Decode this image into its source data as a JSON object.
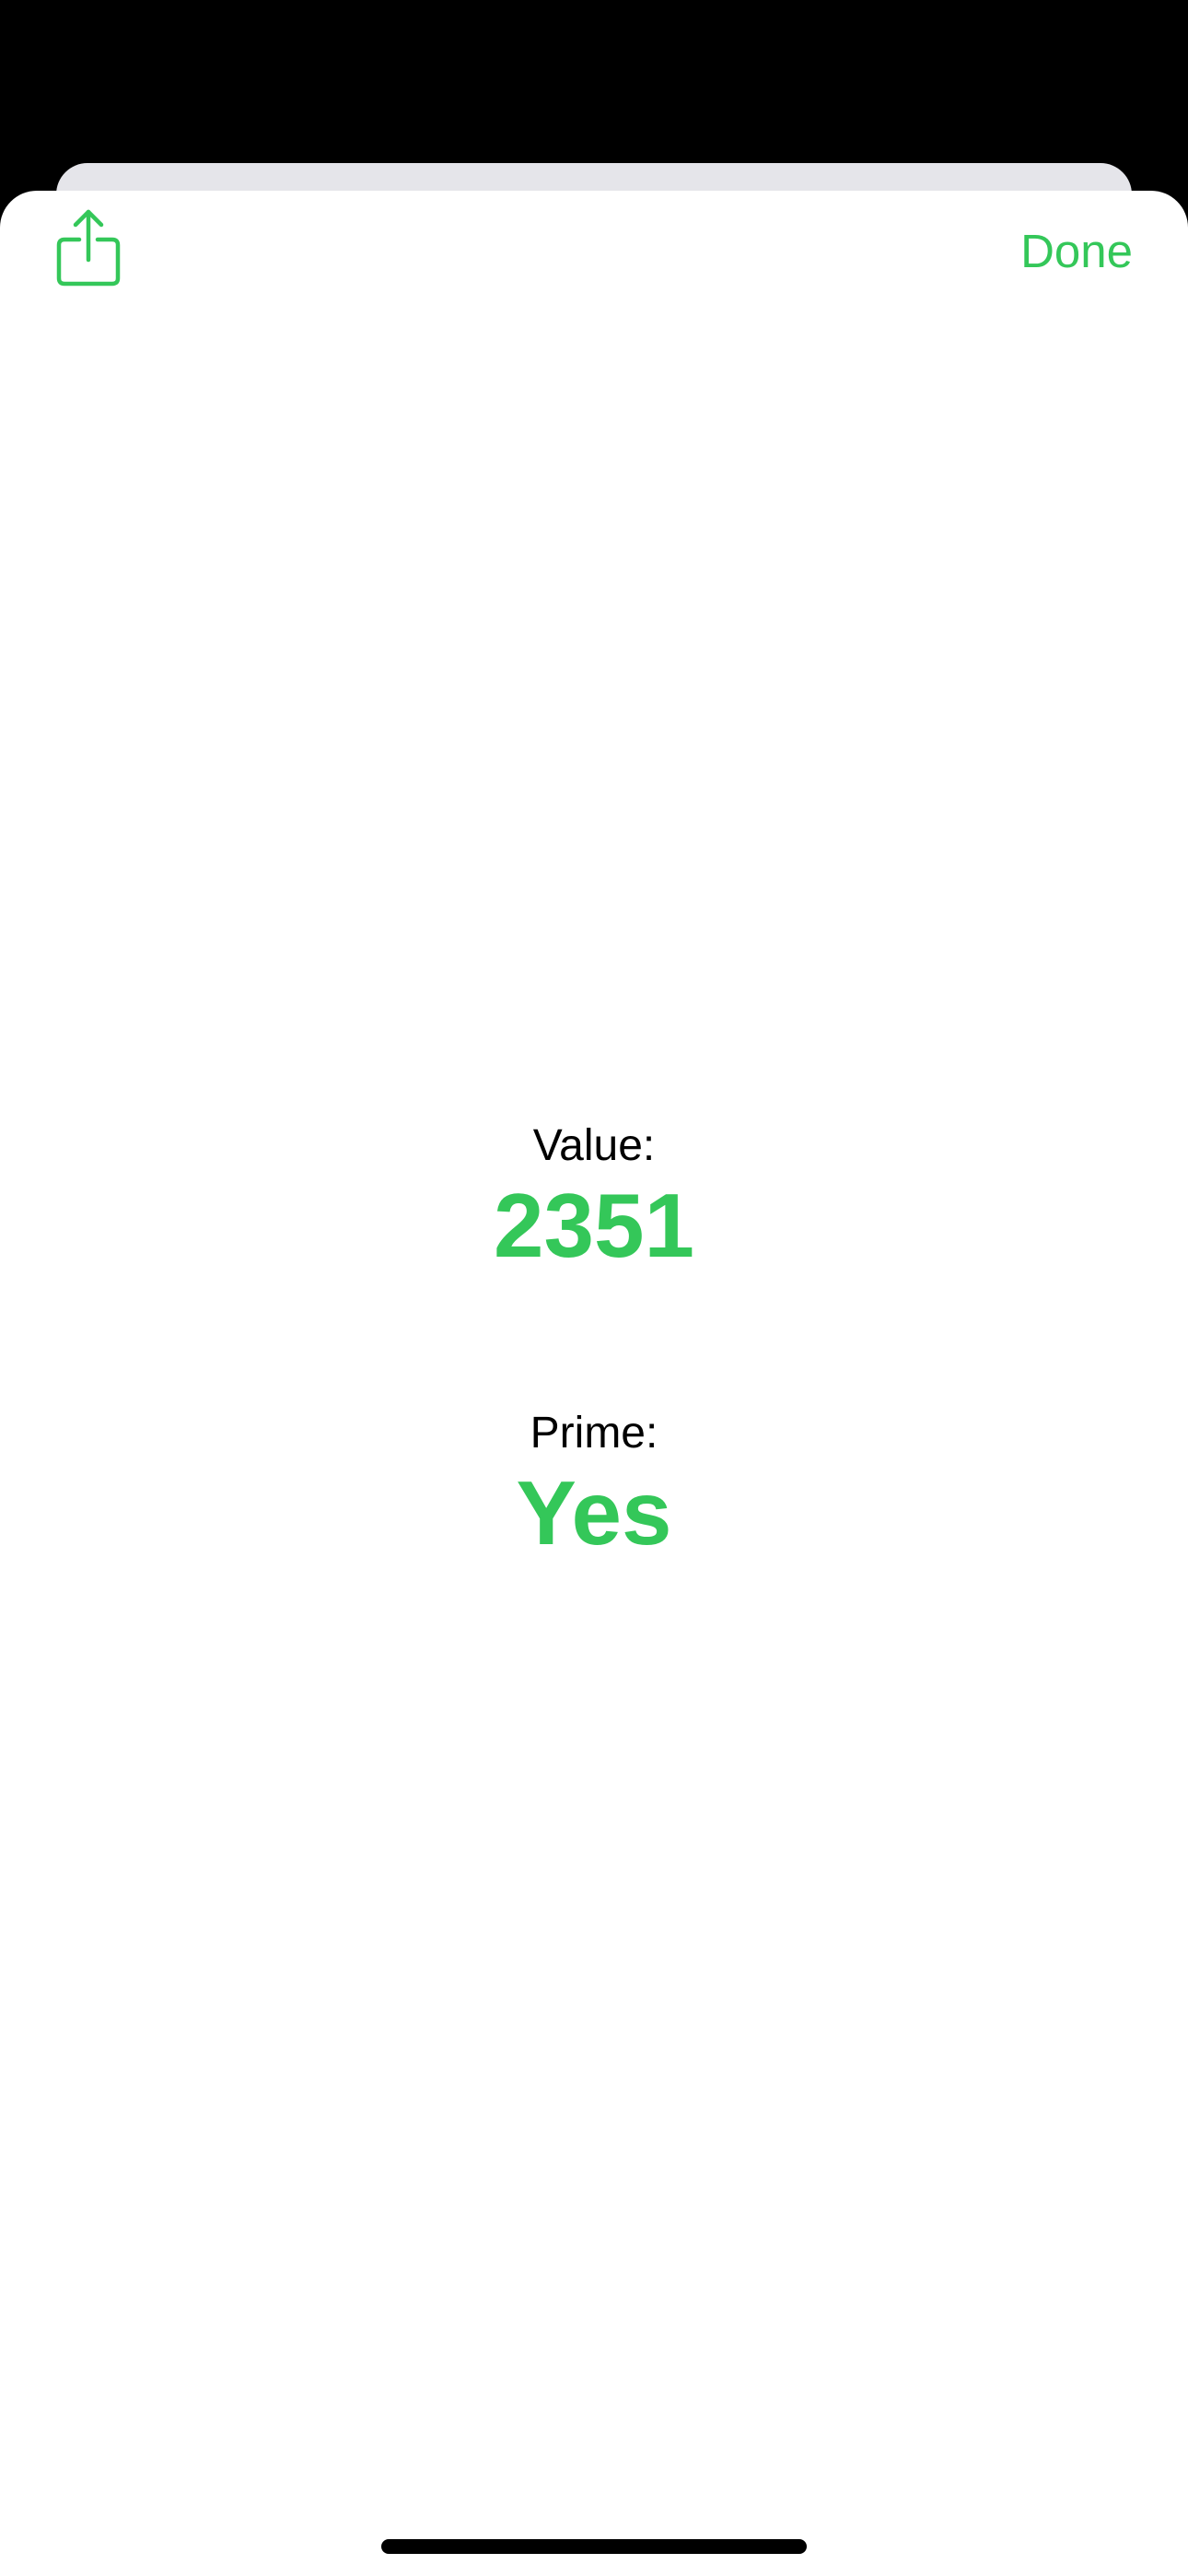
{
  "colors": {
    "accent": "#34c759",
    "background": "#ffffff",
    "backdrop": "#000000",
    "text": "#000000"
  },
  "toolbar": {
    "share_icon": "share-icon",
    "done_label": "Done"
  },
  "result": {
    "value_label": "Value:",
    "value": "2351",
    "prime_label": "Prime:",
    "prime": "Yes"
  }
}
